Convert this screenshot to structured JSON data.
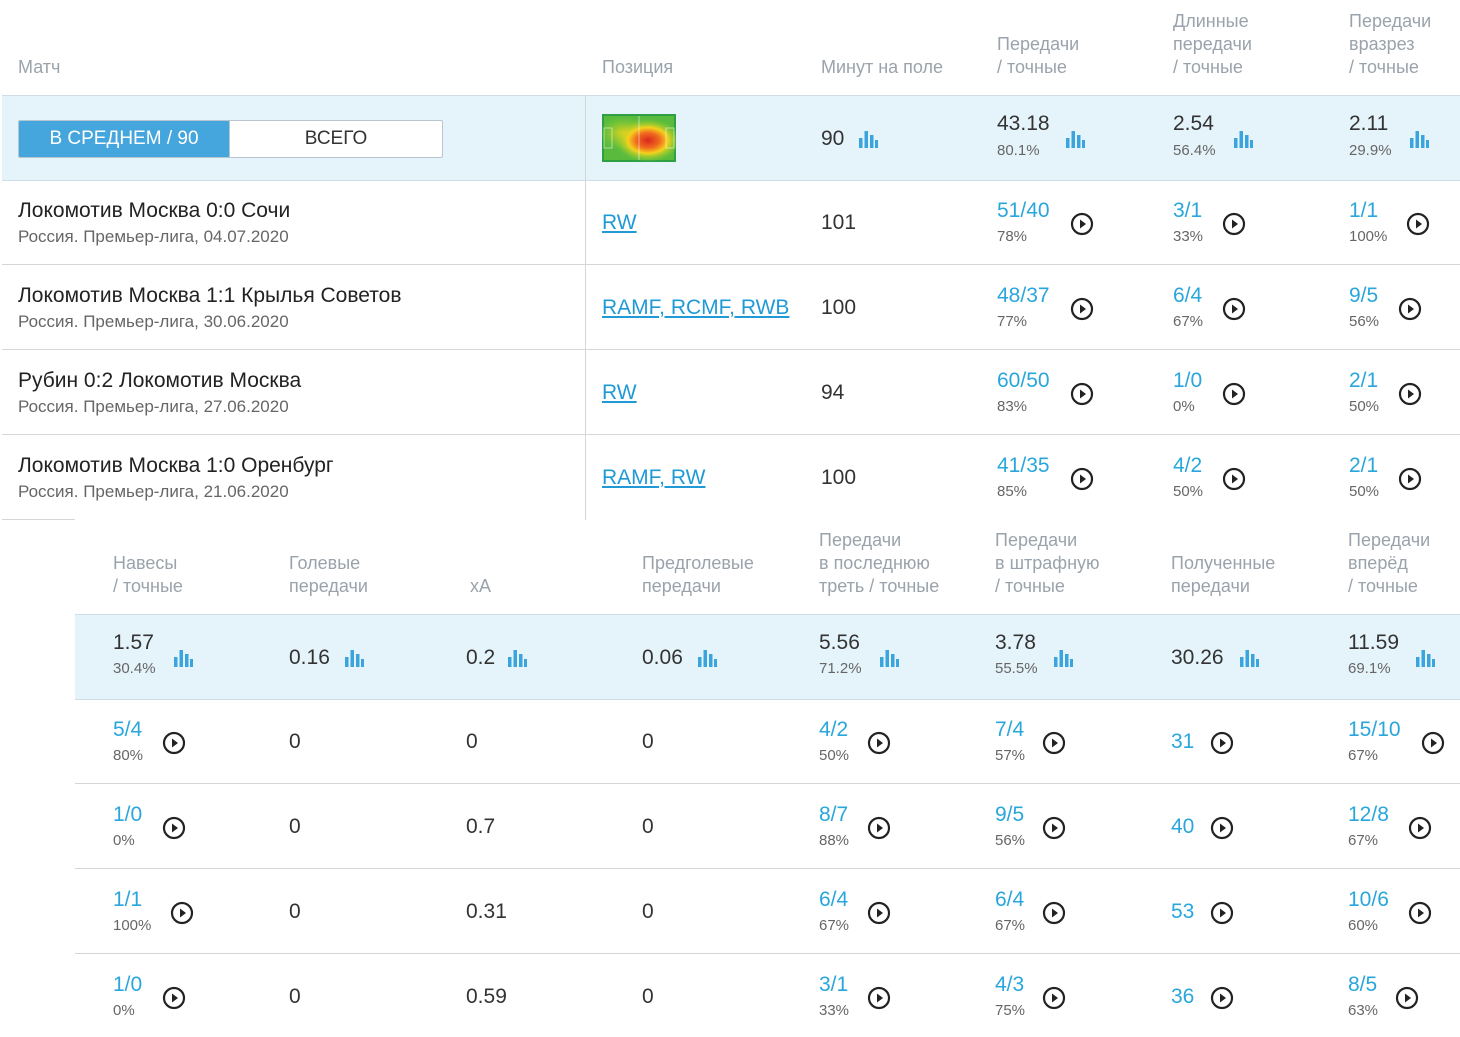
{
  "top_headers": {
    "match": "Матч",
    "position": "Позиция",
    "minutes": "Минут на поле",
    "passes": [
      "Передачи",
      "/ точные"
    ],
    "long_passes": [
      "Длинные",
      "передачи",
      "/ точные"
    ],
    "through_passes": [
      "Передачи",
      "вразрез",
      "/ точные"
    ]
  },
  "toggle": {
    "average": "В СРЕДНЕМ / 90",
    "total": "ВСЕГО"
  },
  "top_summary": {
    "minutes": "90",
    "passes": {
      "value": "43.18",
      "pct": "80.1%"
    },
    "long_passes": {
      "value": "2.54",
      "pct": "56.4%"
    },
    "through_passes": {
      "value": "2.11",
      "pct": "29.9%"
    }
  },
  "matches": [
    {
      "title": "Локомотив Москва 0:0 Сочи",
      "sub": "Россия. Премьер-лига, 04.07.2020",
      "position": "RW",
      "minutes": "101",
      "passes": "51/40",
      "passes_pct": "78%",
      "long": "3/1",
      "long_pct": "33%",
      "through": "1/1",
      "through_pct": "100%"
    },
    {
      "title": "Локомотив Москва 1:1 Крылья Советов",
      "sub": "Россия. Премьер-лига, 30.06.2020",
      "position": "RAMF, RCMF, RWB",
      "minutes": "100",
      "passes": "48/37",
      "passes_pct": "77%",
      "long": "6/4",
      "long_pct": "67%",
      "through": "9/5",
      "through_pct": "56%"
    },
    {
      "title": "Рубин 0:2 Локомотив Москва",
      "sub": "Россия. Премьер-лига, 27.06.2020",
      "position": "RW",
      "minutes": "94",
      "passes": "60/50",
      "passes_pct": "83%",
      "long": "1/0",
      "long_pct": "0%",
      "through": "2/1",
      "through_pct": "50%"
    },
    {
      "title": "Локомотив Москва 1:0 Оренбург",
      "sub": "Россия. Премьер-лига, 21.06.2020",
      "position": "RAMF, RW",
      "minutes": "100",
      "passes": "41/35",
      "passes_pct": "85%",
      "long": "4/2",
      "long_pct": "50%",
      "through": "2/1",
      "through_pct": "50%"
    }
  ],
  "bottom_headers": {
    "crosses": [
      "Навесы",
      "/ точные"
    ],
    "assists": [
      "Голевые",
      "передачи"
    ],
    "xa": "xA",
    "pre_assists": [
      "Предголевые",
      "передачи"
    ],
    "final_third": [
      "Передачи",
      "в последнюю",
      "треть / точные"
    ],
    "penalty_area": [
      "Передачи",
      "в штрафную",
      "/ точные"
    ],
    "received": [
      "Полученные",
      "передачи"
    ],
    "forward": [
      "Передачи",
      "вперёд",
      "/ точные"
    ]
  },
  "bottom_summary": {
    "crosses": {
      "value": "1.57",
      "pct": "30.4%"
    },
    "assists": "0.16",
    "xa": "0.2",
    "pre_assists": "0.06",
    "final_third": {
      "value": "5.56",
      "pct": "71.2%"
    },
    "penalty_area": {
      "value": "3.78",
      "pct": "55.5%"
    },
    "received": "30.26",
    "forward": {
      "value": "11.59",
      "pct": "69.1%"
    }
  },
  "bottom_rows": [
    {
      "crosses": "5/4",
      "crosses_pct": "80%",
      "assists": "0",
      "xa": "0",
      "pre_assists": "0",
      "final_third": "4/2",
      "final_third_pct": "50%",
      "penalty_area": "7/4",
      "penalty_area_pct": "57%",
      "received": "31",
      "forward": "15/10",
      "forward_pct": "67%"
    },
    {
      "crosses": "1/0",
      "crosses_pct": "0%",
      "assists": "0",
      "xa": "0.7",
      "pre_assists": "0",
      "final_third": "8/7",
      "final_third_pct": "88%",
      "penalty_area": "9/5",
      "penalty_area_pct": "56%",
      "received": "40",
      "forward": "12/8",
      "forward_pct": "67%"
    },
    {
      "crosses": "1/1",
      "crosses_pct": "100%",
      "assists": "0",
      "xa": "0.31",
      "pre_assists": "0",
      "final_third": "6/4",
      "final_third_pct": "67%",
      "penalty_area": "6/4",
      "penalty_area_pct": "67%",
      "received": "53",
      "forward": "10/6",
      "forward_pct": "60%"
    },
    {
      "crosses": "1/0",
      "crosses_pct": "0%",
      "assists": "0",
      "xa": "0.59",
      "pre_assists": "0",
      "final_third": "3/1",
      "final_third_pct": "33%",
      "penalty_area": "4/3",
      "penalty_area_pct": "75%",
      "received": "36",
      "forward": "8/5",
      "forward_pct": "63%"
    }
  ],
  "colors": {
    "accent": "#29a6dc",
    "toggle_active": "#45a6dd",
    "band": "#e5f3fb"
  }
}
